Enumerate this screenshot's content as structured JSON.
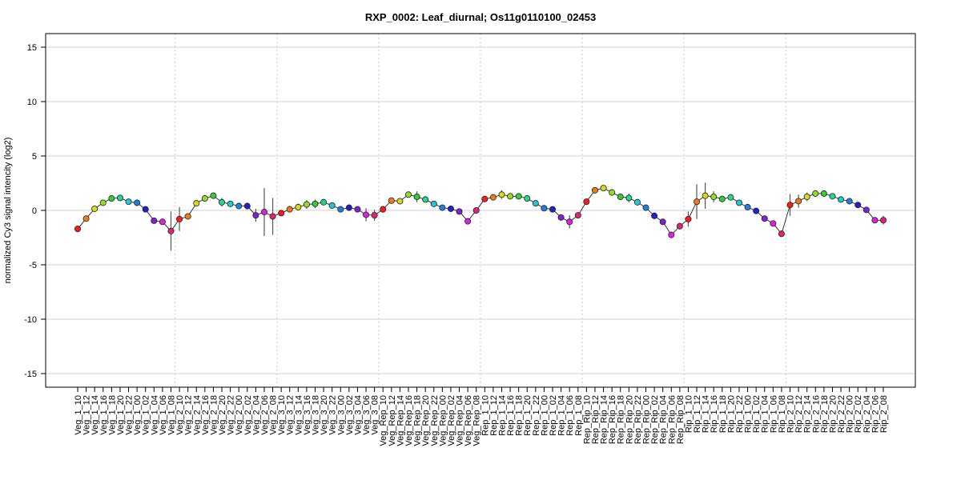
{
  "chart_data": {
    "type": "line",
    "title": "RXP_0002: Leaf_diurnal; Os11g0110100_02453",
    "xlabel": "",
    "ylabel": "normalized Cy3 signal intencity (log2)",
    "ylim": [
      -16,
      16
    ],
    "yticks": [
      -15,
      -10,
      -5,
      0,
      5,
      10,
      15
    ],
    "grid": true,
    "groups": [
      "Veg_1",
      "Veg_2",
      "Veg_3",
      "Veg_Rep",
      "Rep_1",
      "Rep_Rip",
      "Rip_1",
      "Rip_2"
    ],
    "hours": [
      "10",
      "12",
      "14",
      "16",
      "18",
      "20",
      "22",
      "00",
      "02",
      "04",
      "06",
      "08"
    ],
    "point_colors": [
      "#ff1a1a",
      "#f07a18",
      "#d8d818",
      "#90e020",
      "#30d030",
      "#20d890",
      "#20c8d8",
      "#2080e0",
      "#2020d0",
      "#8020d8",
      "#e020e0",
      "#e8207a"
    ],
    "values": [
      -1.7,
      -0.75,
      0.15,
      0.7,
      1.1,
      1.15,
      0.8,
      0.7,
      0.1,
      -0.95,
      -1.05,
      -1.9,
      -0.8,
      -0.55,
      0.65,
      1.1,
      1.35,
      0.75,
      0.6,
      0.4,
      0.4,
      -0.45,
      -0.15,
      -0.55,
      -0.25,
      0.1,
      0.3,
      0.55,
      0.6,
      0.75,
      0.45,
      0.1,
      0.25,
      0.1,
      -0.4,
      -0.45,
      0.1,
      0.9,
      0.85,
      1.45,
      1.25,
      1.0,
      0.6,
      0.25,
      0.15,
      -0.1,
      -1.0,
      0.0,
      1.05,
      1.2,
      1.45,
      1.3,
      1.3,
      1.1,
      0.65,
      0.2,
      0.1,
      -0.65,
      -1.05,
      -0.45,
      0.8,
      1.85,
      2.05,
      1.65,
      1.25,
      1.15,
      0.75,
      0.25,
      -0.5,
      -1.05,
      -2.25,
      -1.45,
      -0.8,
      0.8,
      1.35,
      1.25,
      1.05,
      1.2,
      0.7,
      0.3,
      -0.05,
      -0.75,
      -1.2,
      -2.15,
      0.5,
      0.85,
      1.25,
      1.55,
      1.55,
      1.3,
      1.0,
      0.85,
      0.5,
      0.05,
      -0.9,
      -0.9
    ],
    "errors": [
      0.3,
      0.2,
      0.15,
      0.15,
      0.15,
      0.15,
      0.15,
      0.3,
      0.1,
      0.1,
      0.1,
      1.8,
      1.1,
      0.2,
      0.15,
      0.2,
      0.15,
      0.4,
      0.15,
      0.15,
      0.3,
      0.6,
      2.2,
      1.7,
      0.2,
      0.15,
      0.3,
      0.4,
      0.4,
      0.2,
      0.15,
      0.2,
      0.3,
      0.2,
      0.6,
      0.5,
      0.3,
      0.15,
      0.2,
      0.2,
      0.5,
      0.15,
      0.15,
      0.2,
      0.15,
      0.15,
      0.3,
      0.15,
      0.3,
      0.15,
      0.4,
      0.15,
      0.15,
      0.15,
      0.15,
      0.15,
      0.15,
      0.2,
      0.6,
      0.15,
      0.15,
      0.15,
      0.15,
      0.15,
      0.15,
      0.4,
      0.3,
      0.15,
      0.3,
      0.15,
      0.3,
      0.3,
      0.7,
      1.6,
      1.2,
      0.5,
      0.3,
      0.15,
      0.15,
      0.15,
      0.15,
      0.15,
      0.15,
      0.3,
      1.0,
      0.6,
      0.4,
      0.3,
      0.2,
      0.15,
      0.15,
      0.15,
      0.15,
      0.15,
      0.15,
      0.4
    ]
  }
}
